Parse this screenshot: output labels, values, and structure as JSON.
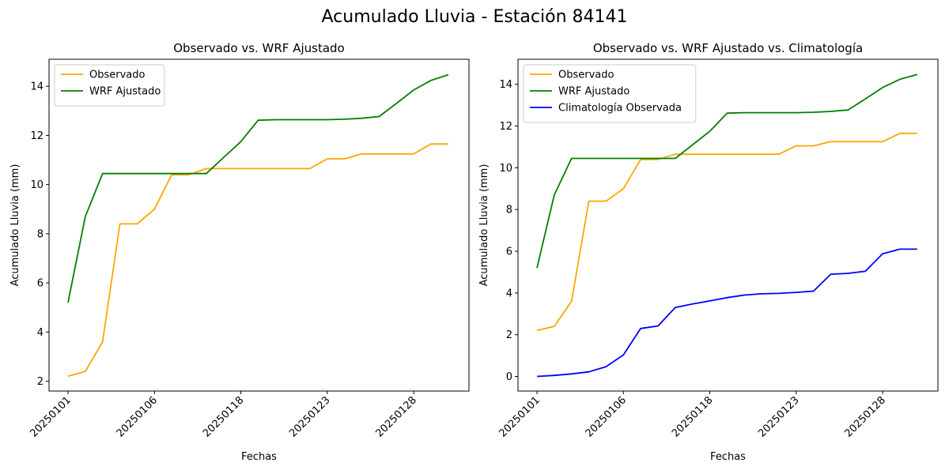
{
  "suptitle": "Acumulado Lluvia - Estación 84141",
  "colors": {
    "observado": "#FFA500",
    "wrf": "#008000",
    "clim": "#0000FF"
  },
  "chart_data": [
    {
      "type": "line",
      "title": "Observado vs. WRF Ajustado",
      "xlabel": "Fechas",
      "ylabel": "Acumulado Lluvia (mm)",
      "x": [
        0,
        1,
        2,
        3,
        4,
        5,
        6,
        7,
        8,
        9,
        10,
        11,
        12,
        13,
        14,
        15,
        16,
        17,
        18,
        19,
        20,
        21,
        22
      ],
      "x_ticks": [
        {
          "pos": 0,
          "label": "20250101"
        },
        {
          "pos": 5,
          "label": "20250106"
        },
        {
          "pos": 10,
          "label": "20250118"
        },
        {
          "pos": 15,
          "label": "20250123"
        },
        {
          "pos": 20,
          "label": "20250128"
        }
      ],
      "ylim": [
        1.6,
        15.1
      ],
      "y_ticks": [
        2,
        4,
        6,
        8,
        10,
        12,
        14
      ],
      "legend_position": "top-left",
      "grid": false,
      "series": [
        {
          "name": "Observado",
          "color": "#FFA500",
          "values": [
            2.2,
            2.4,
            3.6,
            8.4,
            8.4,
            9.0,
            10.4,
            10.4,
            10.65,
            10.65,
            10.65,
            10.65,
            10.65,
            10.65,
            10.65,
            11.05,
            11.05,
            11.25,
            11.25,
            11.25,
            11.25,
            11.65,
            11.65
          ]
        },
        {
          "name": "WRF Ajustado",
          "color": "#008000",
          "values": [
            5.2,
            8.7,
            10.45,
            10.45,
            10.45,
            10.45,
            10.45,
            10.45,
            10.45,
            11.1,
            11.75,
            12.62,
            12.64,
            12.64,
            12.64,
            12.64,
            12.66,
            12.7,
            12.77,
            13.3,
            13.85,
            14.24,
            14.47
          ]
        }
      ]
    },
    {
      "type": "line",
      "title": "Observado vs. WRF Ajustado vs. Climatología",
      "xlabel": "Fechas",
      "ylabel": "Acumulado Lluvia (mm)",
      "x": [
        0,
        1,
        2,
        3,
        4,
        5,
        6,
        7,
        8,
        9,
        10,
        11,
        12,
        13,
        14,
        15,
        16,
        17,
        18,
        19,
        20,
        21,
        22
      ],
      "x_ticks": [
        {
          "pos": 0,
          "label": "20250101"
        },
        {
          "pos": 5,
          "label": "20250106"
        },
        {
          "pos": 10,
          "label": "20250118"
        },
        {
          "pos": 15,
          "label": "20250123"
        },
        {
          "pos": 20,
          "label": "20250128"
        }
      ],
      "ylim": [
        -0.7,
        15.2
      ],
      "y_ticks": [
        0,
        2,
        4,
        6,
        8,
        10,
        12,
        14
      ],
      "legend_position": "top-left",
      "grid": false,
      "series": [
        {
          "name": "Observado",
          "color": "#FFA500",
          "values": [
            2.2,
            2.4,
            3.6,
            8.4,
            8.4,
            9.0,
            10.4,
            10.4,
            10.65,
            10.65,
            10.65,
            10.65,
            10.65,
            10.65,
            10.65,
            11.05,
            11.05,
            11.25,
            11.25,
            11.25,
            11.25,
            11.65,
            11.65
          ]
        },
        {
          "name": "WRF Ajustado",
          "color": "#008000",
          "values": [
            5.2,
            8.7,
            10.45,
            10.45,
            10.45,
            10.45,
            10.45,
            10.45,
            10.45,
            11.1,
            11.75,
            12.62,
            12.64,
            12.64,
            12.64,
            12.64,
            12.66,
            12.7,
            12.77,
            13.3,
            13.85,
            14.24,
            14.47
          ]
        },
        {
          "name": "Climatología Observada",
          "color": "#0000FF",
          "values": [
            0.0,
            0.05,
            0.12,
            0.22,
            0.47,
            1.03,
            2.3,
            2.42,
            3.3,
            3.47,
            3.62,
            3.78,
            3.9,
            3.96,
            3.98,
            4.03,
            4.09,
            4.9,
            4.94,
            5.04,
            5.88,
            6.1,
            6.1
          ]
        }
      ]
    }
  ]
}
